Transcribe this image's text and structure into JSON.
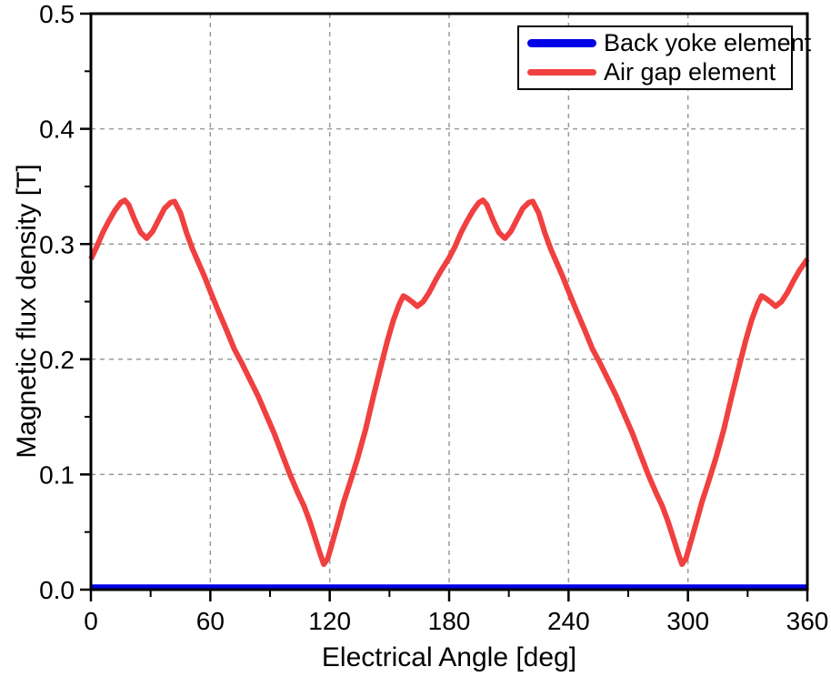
{
  "page": {
    "background": "#ffffff"
  },
  "chart_data": {
    "type": "line",
    "title": "",
    "xlabel": "Electrical Angle [deg]",
    "ylabel": "Magnetic flux density [T]",
    "xlim": [
      0,
      360
    ],
    "ylim": [
      0,
      0.5
    ],
    "x_major_ticks": [
      0,
      60,
      120,
      180,
      240,
      300,
      360
    ],
    "x_tick_labels": [
      "0",
      "60",
      "120",
      "180",
      "240",
      "300",
      "360"
    ],
    "x_minor_ticks": [
      30,
      90,
      150,
      210,
      270,
      330
    ],
    "y_major_ticks": [
      0,
      0.1,
      0.2,
      0.3,
      0.4,
      0.5
    ],
    "y_tick_labels": [
      "0.0",
      "0.1",
      "0.2",
      "0.3",
      "0.4",
      "0.5"
    ],
    "y_minor_ticks": [
      0.05,
      0.15,
      0.25,
      0.35,
      0.45
    ],
    "grid": {
      "x_lines": [
        60,
        120,
        180,
        240,
        300
      ],
      "y_lines": [
        0.1,
        0.2,
        0.3,
        0.4
      ],
      "color": "#9a9a9a",
      "dash": "5,5",
      "on": true
    },
    "axis_color": "#000000",
    "legend": {
      "position": "top-right",
      "entries": [
        {
          "label": "Back yoke element",
          "color": "#0000e6"
        },
        {
          "label": "Air gap element",
          "color": "#f04040"
        }
      ]
    },
    "series": [
      {
        "name": "Back yoke element",
        "color": "#0000e6",
        "width": 6.5,
        "points": [
          [
            0,
            0.002
          ],
          [
            360,
            0.002
          ]
        ]
      },
      {
        "name": "Air gap element",
        "color": "#f04040",
        "width": 6,
        "points": [
          [
            0,
            0.287
          ],
          [
            3,
            0.298
          ],
          [
            6,
            0.31
          ],
          [
            9,
            0.32
          ],
          [
            12,
            0.329
          ],
          [
            15,
            0.336
          ],
          [
            17,
            0.338
          ],
          [
            19,
            0.334
          ],
          [
            22,
            0.321
          ],
          [
            25,
            0.31
          ],
          [
            28,
            0.305
          ],
          [
            31,
            0.311
          ],
          [
            34,
            0.321
          ],
          [
            37,
            0.331
          ],
          [
            40,
            0.336
          ],
          [
            42,
            0.337
          ],
          [
            45,
            0.327
          ],
          [
            48,
            0.31
          ],
          [
            51,
            0.296
          ],
          [
            54,
            0.284
          ],
          [
            57,
            0.272
          ],
          [
            60,
            0.259
          ],
          [
            64,
            0.242
          ],
          [
            68,
            0.226
          ],
          [
            72,
            0.209
          ],
          [
            76,
            0.196
          ],
          [
            80,
            0.182
          ],
          [
            84,
            0.168
          ],
          [
            88,
            0.152
          ],
          [
            92,
            0.136
          ],
          [
            96,
            0.118
          ],
          [
            100,
            0.1
          ],
          [
            104,
            0.084
          ],
          [
            107,
            0.073
          ],
          [
            110,
            0.059
          ],
          [
            113,
            0.043
          ],
          [
            115,
            0.032
          ],
          [
            117,
            0.022
          ],
          [
            119,
            0.027
          ],
          [
            121,
            0.039
          ],
          [
            124,
            0.057
          ],
          [
            127,
            0.076
          ],
          [
            130,
            0.092
          ],
          [
            134,
            0.114
          ],
          [
            138,
            0.139
          ],
          [
            142,
            0.168
          ],
          [
            146,
            0.196
          ],
          [
            149,
            0.216
          ],
          [
            152,
            0.234
          ],
          [
            155,
            0.248
          ],
          [
            157,
            0.255
          ],
          [
            159,
            0.253
          ],
          [
            162,
            0.249
          ],
          [
            164,
            0.246
          ],
          [
            167,
            0.25
          ],
          [
            170,
            0.258
          ],
          [
            173,
            0.268
          ],
          [
            176,
            0.277
          ],
          [
            180,
            0.288
          ],
          [
            183,
            0.298
          ],
          [
            186,
            0.31
          ],
          [
            189,
            0.32
          ],
          [
            192,
            0.329
          ],
          [
            195,
            0.336
          ],
          [
            197,
            0.338
          ],
          [
            199,
            0.334
          ],
          [
            202,
            0.321
          ],
          [
            205,
            0.31
          ],
          [
            208,
            0.305
          ],
          [
            211,
            0.311
          ],
          [
            214,
            0.321
          ],
          [
            217,
            0.331
          ],
          [
            220,
            0.336
          ],
          [
            222,
            0.337
          ],
          [
            225,
            0.327
          ],
          [
            228,
            0.31
          ],
          [
            231,
            0.296
          ],
          [
            234,
            0.284
          ],
          [
            237,
            0.272
          ],
          [
            240,
            0.259
          ],
          [
            244,
            0.242
          ],
          [
            248,
            0.226
          ],
          [
            252,
            0.209
          ],
          [
            256,
            0.196
          ],
          [
            260,
            0.182
          ],
          [
            264,
            0.168
          ],
          [
            268,
            0.152
          ],
          [
            272,
            0.136
          ],
          [
            276,
            0.118
          ],
          [
            280,
            0.1
          ],
          [
            284,
            0.084
          ],
          [
            287,
            0.073
          ],
          [
            290,
            0.059
          ],
          [
            293,
            0.043
          ],
          [
            295,
            0.032
          ],
          [
            297,
            0.022
          ],
          [
            299,
            0.027
          ],
          [
            301,
            0.039
          ],
          [
            304,
            0.057
          ],
          [
            307,
            0.076
          ],
          [
            310,
            0.092
          ],
          [
            314,
            0.114
          ],
          [
            318,
            0.139
          ],
          [
            322,
            0.168
          ],
          [
            326,
            0.196
          ],
          [
            329,
            0.216
          ],
          [
            332,
            0.234
          ],
          [
            335,
            0.248
          ],
          [
            337,
            0.255
          ],
          [
            339,
            0.253
          ],
          [
            342,
            0.249
          ],
          [
            344,
            0.246
          ],
          [
            347,
            0.25
          ],
          [
            350,
            0.258
          ],
          [
            353,
            0.268
          ],
          [
            356,
            0.277
          ],
          [
            360,
            0.287
          ]
        ]
      }
    ]
  }
}
